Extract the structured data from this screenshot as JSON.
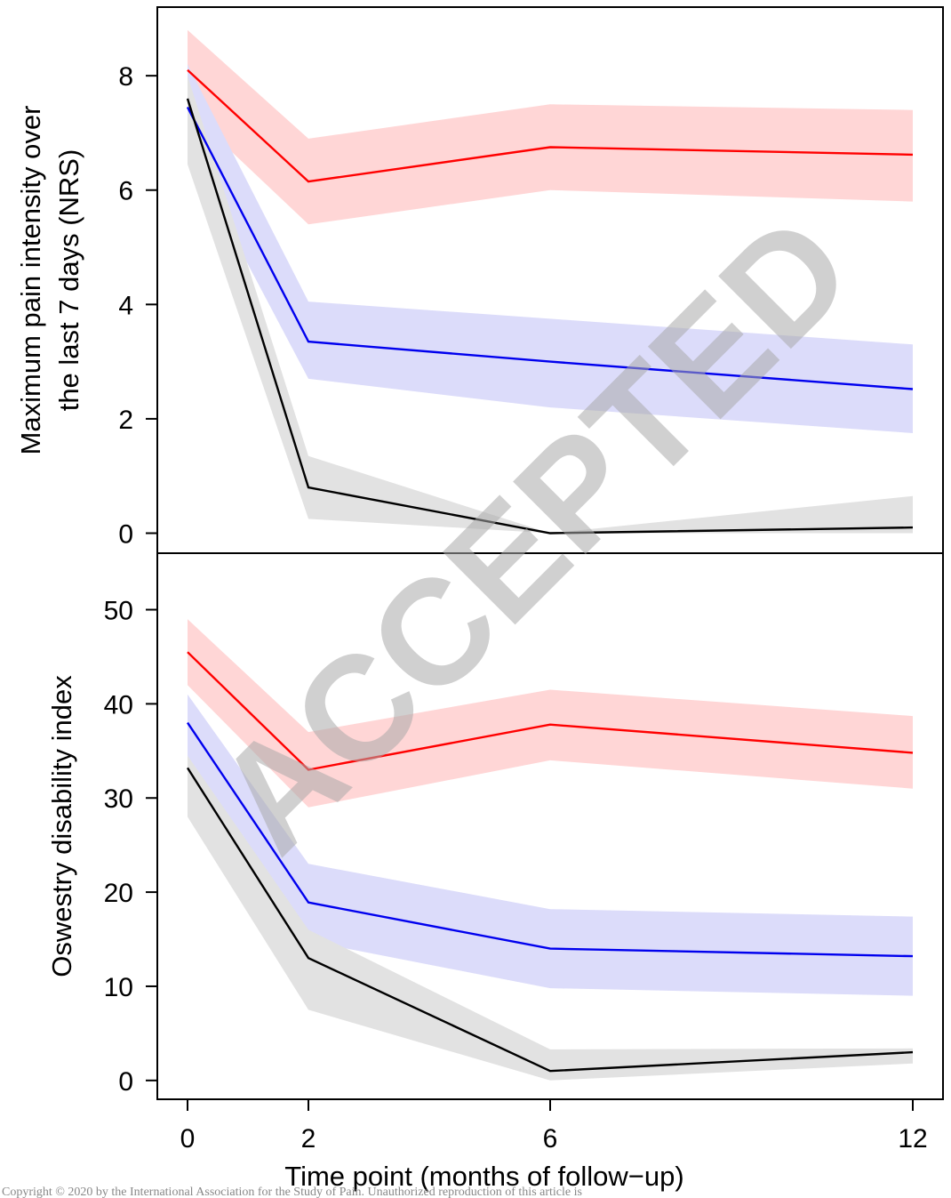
{
  "chart_data": [
    {
      "type": "line",
      "panel": "top",
      "ylabel_lines": [
        "Maximum pain intensity over",
        "the last 7 days (NRS)"
      ],
      "xlabel": "",
      "x": [
        0,
        2,
        6,
        12
      ],
      "ylim": [
        -0.35,
        9.2
      ],
      "yticks": [
        0,
        2,
        4,
        6,
        8
      ],
      "grid": false,
      "series": [
        {
          "color": "#ff0000",
          "band_color": "#ffd6d6",
          "values": [
            8.1,
            6.15,
            6.75,
            6.62
          ],
          "lower": [
            7.4,
            5.4,
            6.0,
            5.8
          ],
          "upper": [
            8.8,
            6.9,
            7.5,
            7.4
          ]
        },
        {
          "color": "#0000ee",
          "band_color": "#dcdcfa",
          "values": [
            7.45,
            3.35,
            3.0,
            2.52
          ],
          "lower": [
            6.7,
            2.7,
            2.2,
            1.75
          ],
          "upper": [
            8.2,
            4.05,
            3.75,
            3.3
          ]
        },
        {
          "color": "#000000",
          "band_color": "#e2e2e2",
          "values": [
            7.6,
            0.8,
            0.0,
            0.1
          ],
          "lower": [
            6.45,
            0.25,
            0.0,
            0.0
          ],
          "upper": [
            8.0,
            1.35,
            0.0,
            0.65
          ]
        }
      ]
    },
    {
      "type": "line",
      "panel": "bottom",
      "ylabel_lines": [
        "Oswestry disability index"
      ],
      "xlabel": "Time point (months of follow−up)",
      "x": [
        0,
        2,
        6,
        12
      ],
      "xticks": [
        0,
        2,
        6,
        12
      ],
      "ylim": [
        -2,
        56
      ],
      "yticks": [
        0,
        10,
        20,
        30,
        40,
        50
      ],
      "grid": false,
      "series": [
        {
          "color": "#ff0000",
          "band_color": "#ffd6d6",
          "values": [
            45.5,
            33.0,
            37.8,
            34.8
          ],
          "lower": [
            42.0,
            29.0,
            34.0,
            31.0
          ],
          "upper": [
            49.0,
            37.0,
            41.5,
            38.7
          ]
        },
        {
          "color": "#0000ee",
          "band_color": "#dcdcfa",
          "values": [
            38.0,
            18.9,
            14.0,
            13.2
          ],
          "lower": [
            34.5,
            14.8,
            9.8,
            9.0
          ],
          "upper": [
            41.0,
            23.0,
            18.2,
            17.4
          ]
        },
        {
          "color": "#000000",
          "band_color": "#e2e2e2",
          "values": [
            33.2,
            13.0,
            1.0,
            3.0
          ],
          "lower": [
            28.0,
            7.5,
            0.0,
            1.8
          ],
          "upper": [
            34.5,
            16.0,
            3.3,
            3.4
          ]
        }
      ]
    }
  ],
  "watermark": "ACCEPTED",
  "copyright": "Copyright © 2020 by the International Association for the Study of Pain. Unauthorized reproduction of this article is"
}
